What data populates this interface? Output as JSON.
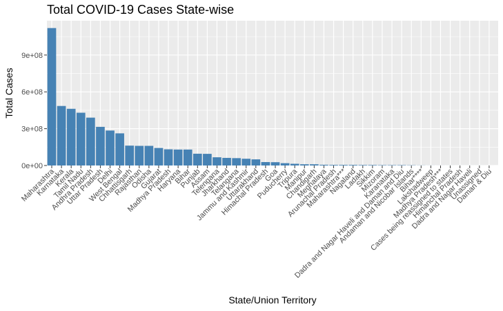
{
  "chart_data": {
    "type": "bar",
    "title": "Total COVID-19 Cases State-wise",
    "xlabel": "State/Union Territory",
    "ylabel": "Total Cases",
    "ylim": [
      0,
      1180000000
    ],
    "yticks": [
      0,
      300000000,
      600000000,
      900000000
    ],
    "ytick_labels": [
      "0e+00",
      "3e+08",
      "6e+08",
      "9e+08"
    ],
    "grid": true,
    "bar_color": "#4682B4",
    "panel_color": "#EBEBEB",
    "categories": [
      "Maharashtra",
      "Karnataka",
      "Kerala",
      "Tamil Nadu",
      "Andhra Pradesh",
      "Uttar Pradesh",
      "Delhi",
      "West Bengal",
      "Chhattisgarh",
      "Rajasthan",
      "Odisha",
      "Gujarat",
      "Madhya Pradesh",
      "Haryana",
      "Bihar",
      "Punjab",
      "Assam",
      "Telengana",
      "Jharkhand",
      "Telangana",
      "Jammu and Kashmir",
      "Uttarakhand",
      "Himachal Pradesh",
      "Goa",
      "Puducherry",
      "Tripura",
      "Manipur",
      "Chandigarh",
      "Meghalaya",
      "Arunachal Pradesh",
      "Maharashtra***",
      "Nagaland",
      "Ladakh",
      "Sikkim",
      "Mizoram",
      "Karanataka",
      "Dadra and Nagar Haveli and Daman and Diu",
      "Andaman and Nicobar Islands",
      "Bihar****",
      "Lakshadweep",
      "Madhya Pradesh***",
      "Cases being reassigned to states",
      "Himanchal Pradesh",
      "Dadra and Nagar Haveli",
      "Unassigned",
      "Daman & Diu"
    ],
    "values": [
      1120000000,
      485000000,
      462000000,
      430000000,
      390000000,
      315000000,
      285000000,
      262000000,
      162000000,
      160000000,
      160000000,
      143000000,
      132000000,
      130000000,
      130000000,
      96000000,
      95000000,
      67000000,
      62000000,
      60000000,
      55000000,
      50000000,
      28000000,
      27000000,
      19000000,
      14000000,
      10000000,
      10000000,
      6000000,
      5000000,
      5000000,
      5000000,
      4000000,
      4000000,
      3000000,
      3000000,
      3000000,
      2000000,
      1000000,
      400000,
      300000,
      200000,
      100000,
      100000,
      100000,
      50000
    ]
  }
}
